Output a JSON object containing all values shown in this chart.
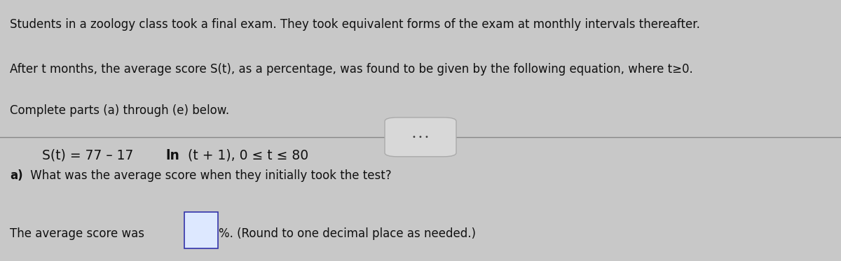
{
  "background_color": "#c8c8c8",
  "text_color": "#111111",
  "line1": "Students in a zoology class took a final exam. They took equivalent forms of the exam at monthly intervals thereafter.",
  "line2": "After t months, the average score S(t), as a percentage, was found to be given by the following equation, where t≥0.",
  "line3": "Complete parts (a) through (e) below.",
  "eq_prefix": "S(t) = 77 – 17 ",
  "eq_ln": "ln",
  "eq_suffix": " (t + 1), 0 ≤ t ≤ 80",
  "divider_color": "#888888",
  "part_a_bold": "a)",
  "part_a_question": " What was the average score when they initially took the test?",
  "part_a_answer_prefix": "The average score was ",
  "part_a_answer_suffix": "%. (Round to one decimal place as needed.)",
  "font_size_main": 12.0,
  "font_size_equation": 13.5,
  "font_size_part": 12.0,
  "box_border_color": "#3333aa",
  "box_fill_color": "#dde8ff"
}
